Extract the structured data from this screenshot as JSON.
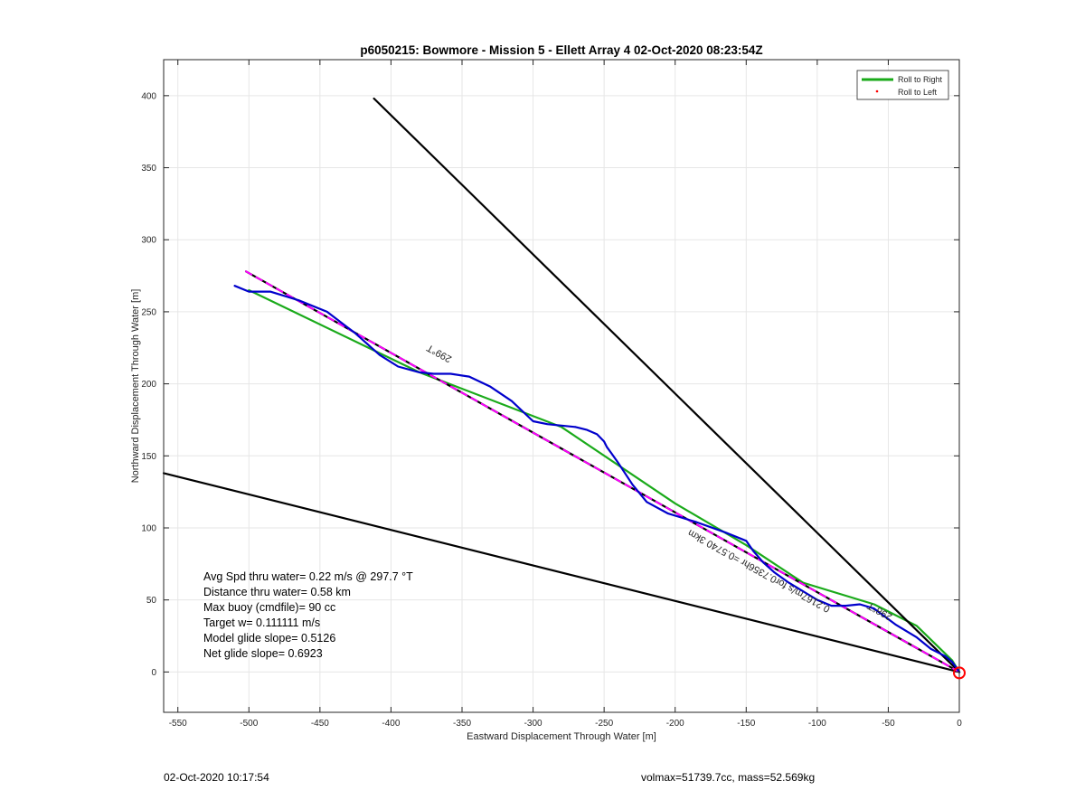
{
  "chart_data": {
    "type": "line",
    "title": "p6050215: Bowmore - Mission 5 - Ellett Array 4 02-Oct-2020 08:23:54Z",
    "xlabel": "Eastward Displacement Through Water [m]",
    "ylabel": "Northward Displacement Through Water [m]",
    "xlim": [
      -560,
      0
    ],
    "ylim": [
      -28,
      425
    ],
    "xticks": [
      -550,
      -500,
      -450,
      -400,
      -350,
      -300,
      -250,
      -200,
      -150,
      -100,
      -50,
      0
    ],
    "yticks": [
      0,
      50,
      100,
      150,
      200,
      250,
      300,
      350,
      400
    ],
    "grid": true,
    "legend_position": "top-right",
    "legend": [
      {
        "label": "Roll to Right",
        "color": "#1aaa1a",
        "style": "line"
      },
      {
        "label": "Roll to Left",
        "color": "#ff0000",
        "style": "dot"
      }
    ],
    "series": [
      {
        "name": "Roll to Right",
        "color": "#1aaa1a",
        "x": [
          -500,
          -380,
          -280,
          -200,
          -150,
          -110,
          -60,
          -30,
          -5,
          0
        ],
        "y": [
          265,
          208,
          170,
          117,
          88,
          62,
          47,
          32,
          8,
          0
        ]
      },
      {
        "color": "#000000",
        "x": [
          0,
          -412
        ],
        "y": [
          0,
          398
        ]
      },
      {
        "color": "#000000",
        "x": [
          0,
          -560
        ],
        "y": [
          0,
          138
        ]
      },
      {
        "color": "#000000",
        "x": [
          -502,
          0
        ],
        "y": [
          278,
          0
        ]
      },
      {
        "color": "#ff00ff",
        "dashed": true,
        "x": [
          -502,
          0
        ],
        "y": [
          278,
          0
        ]
      },
      {
        "color": "#0000cc",
        "x": [
          -510,
          -500,
          -485,
          -465,
          -445,
          -425,
          -408,
          -395,
          -380,
          -370,
          -358,
          -345,
          -330,
          -315,
          -300,
          -290,
          -280,
          -270,
          -262,
          -255,
          -250,
          -248,
          -245,
          -240,
          -230,
          -220,
          -205,
          -185,
          -165,
          -150,
          -145,
          -138,
          -130,
          -120,
          -110,
          -100,
          -90,
          -80,
          -70,
          -60,
          -45,
          -30,
          -20,
          -10,
          -5,
          0
        ],
        "y": [
          268,
          264,
          264,
          258,
          250,
          235,
          220,
          212,
          208,
          207,
          207,
          205,
          198,
          188,
          174,
          172,
          171,
          170,
          168,
          165,
          160,
          156,
          152,
          145,
          130,
          118,
          110,
          104,
          97,
          91,
          84,
          76,
          69,
          62,
          56,
          50,
          46,
          46,
          47,
          44,
          33,
          24,
          16,
          11,
          7,
          0
        ]
      }
    ],
    "annotations": [
      {
        "text": "299°T",
        "x": -365,
        "y": 223
      },
      {
        "text": "0.2167m/s for0.7356hr =0.5740 3km",
        "x": -140,
        "y": 72
      },
      {
        "text": "298°T",
        "x": -55,
        "y": 44
      },
      {
        "text": "Avg Spd thru water=  0.22 m/s @ 297.7 °T"
      },
      {
        "text": "Distance thru water=  0.58 km"
      },
      {
        "text": "Max buoy (cmdfile)= 90 cc"
      },
      {
        "text": "Target w= 0.111111 m/s"
      },
      {
        "text": "Model glide slope= 0.5126"
      },
      {
        "text": "Net glide slope= 0.6923"
      }
    ],
    "marker": {
      "x": 0,
      "y": 0,
      "color": "#ff0000",
      "shape": "circle"
    }
  },
  "footer": {
    "left": "02-Oct-2020 10:17:54",
    "right": "volmax=51739.7cc, mass=52.569kg"
  }
}
